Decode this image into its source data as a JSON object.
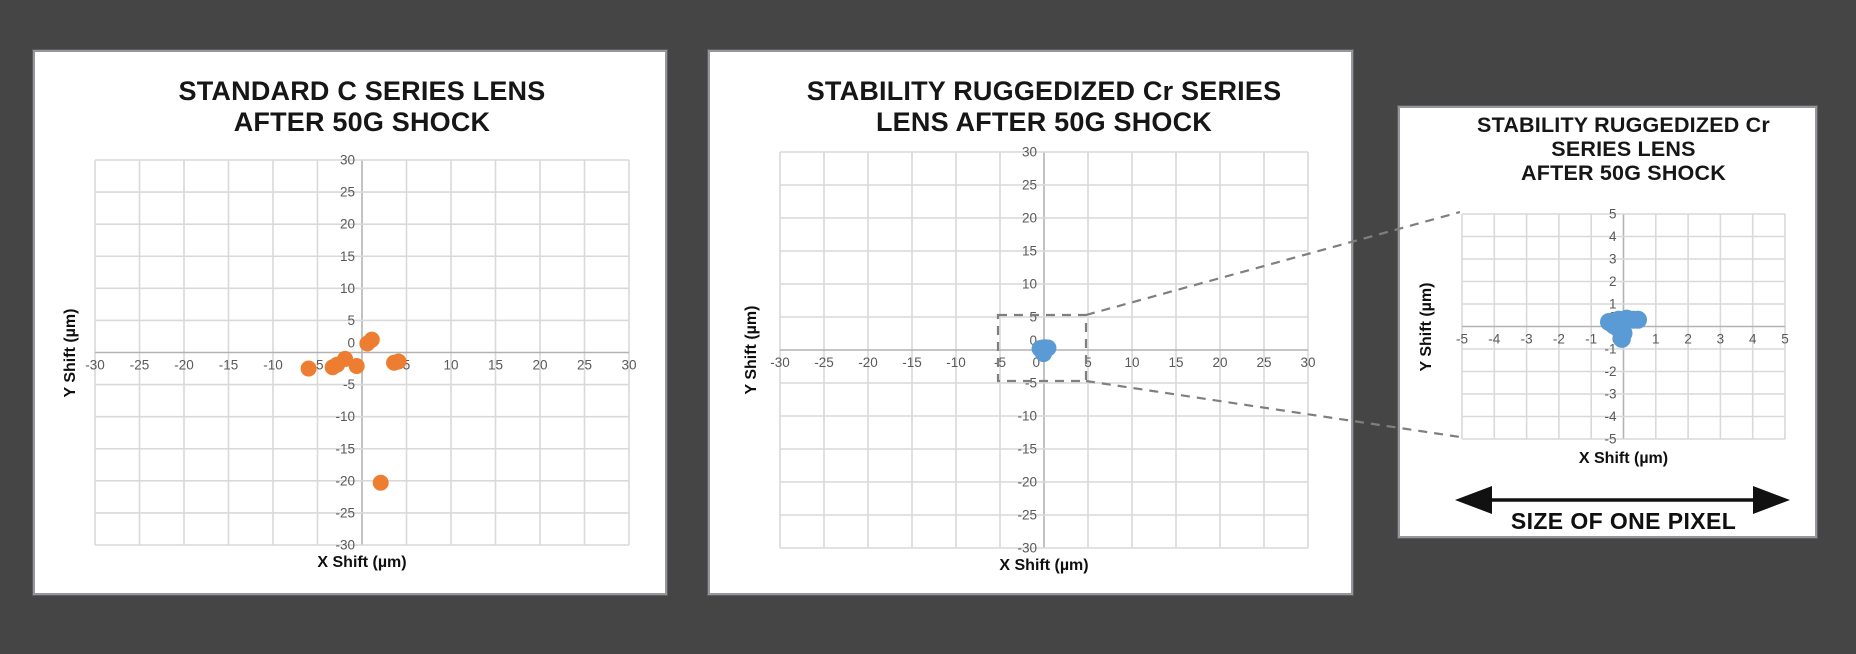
{
  "page": {
    "background_color": "#454545",
    "panel_background": "#ffffff"
  },
  "colors": {
    "grid": "#d9d9d9",
    "axis": "#b3b3b3",
    "tick_text": "#595959",
    "title_text": "#161616",
    "orange_series": "#ED7D31",
    "blue_series": "#5B9BD5",
    "dashed_callout": "#7f7f7f",
    "arrow": "#111111"
  },
  "chart_data": [
    {
      "type": "scatter",
      "title_lines": [
        "STANDARD C SERIES LENS",
        "AFTER 50G SHOCK"
      ],
      "xlabel": "X Shift (µm)",
      "ylabel": "Y Shift (µm)",
      "xlim": [
        -30,
        30
      ],
      "ylim": [
        -30,
        30
      ],
      "tick_step": 5,
      "grid": true,
      "marker_color": "#ED7D31",
      "points": [
        [
          -6,
          -2.5
        ],
        [
          -3.3,
          -2.3
        ],
        [
          -2.8,
          -1.9
        ],
        [
          -1.9,
          -1.0
        ],
        [
          -0.6,
          -2.1
        ],
        [
          0.6,
          1.4
        ],
        [
          1.1,
          2.0
        ],
        [
          3.6,
          -1.6
        ],
        [
          4.1,
          -1.4
        ],
        [
          2.1,
          -20.3
        ]
      ]
    },
    {
      "type": "scatter",
      "title_lines": [
        "STABILITY RUGGEDIZED Cr SERIES",
        "LENS AFTER 50G SHOCK"
      ],
      "xlabel": "X Shift (µm)",
      "ylabel": "Y Shift (µm)",
      "xlim": [
        -30,
        30
      ],
      "ylim": [
        -30,
        30
      ],
      "tick_step": 5,
      "grid": true,
      "marker_color": "#5B9BD5",
      "points": [
        [
          -0.45,
          0.2
        ],
        [
          -0.3,
          0.05
        ],
        [
          -0.15,
          0.3
        ],
        [
          0,
          0.15
        ],
        [
          0.1,
          0.35
        ],
        [
          0.3,
          0.3
        ],
        [
          0.45,
          0.3
        ],
        [
          -0.15,
          -0.1
        ],
        [
          0,
          -0.3
        ],
        [
          -0.05,
          -0.55
        ]
      ],
      "zoom_box": {
        "xlim": [
          -5,
          5
        ],
        "ylim": [
          -5,
          5
        ]
      }
    },
    {
      "type": "scatter",
      "title_lines": [
        "STABILITY RUGGEDIZED Cr",
        "SERIES LENS",
        "AFTER 50G SHOCK"
      ],
      "xlabel": "X Shift (µm)",
      "ylabel": "Y Shift (µm)",
      "xlim": [
        -5,
        5
      ],
      "ylim": [
        -5,
        5
      ],
      "tick_step": 1,
      "grid": true,
      "marker_color": "#5B9BD5",
      "points": [
        [
          -0.45,
          0.2
        ],
        [
          -0.3,
          0.05
        ],
        [
          -0.15,
          0.3
        ],
        [
          0,
          0.15
        ],
        [
          0.1,
          0.35
        ],
        [
          0.3,
          0.3
        ],
        [
          0.45,
          0.3
        ],
        [
          -0.15,
          -0.1
        ],
        [
          0,
          -0.3
        ],
        [
          -0.05,
          -0.55
        ]
      ],
      "annotation": "SIZE OF ONE PIXEL"
    }
  ]
}
